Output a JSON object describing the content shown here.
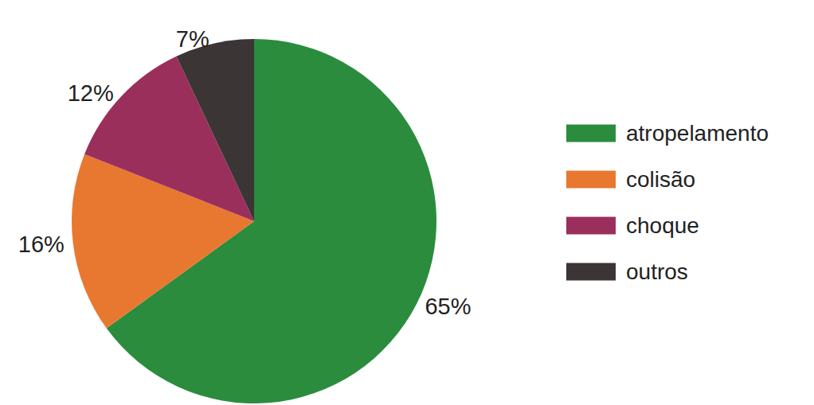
{
  "chart_data": {
    "type": "pie",
    "categories": [
      "atropelamento",
      "colisão",
      "choque",
      "outros"
    ],
    "values": [
      65,
      16,
      12,
      7
    ],
    "value_labels": [
      "65%",
      "16%",
      "12%",
      "7%"
    ],
    "colors": [
      "#2b8c3e",
      "#e87830",
      "#9b2f5c",
      "#3b3535"
    ],
    "data_labels": true,
    "legend": "right"
  }
}
